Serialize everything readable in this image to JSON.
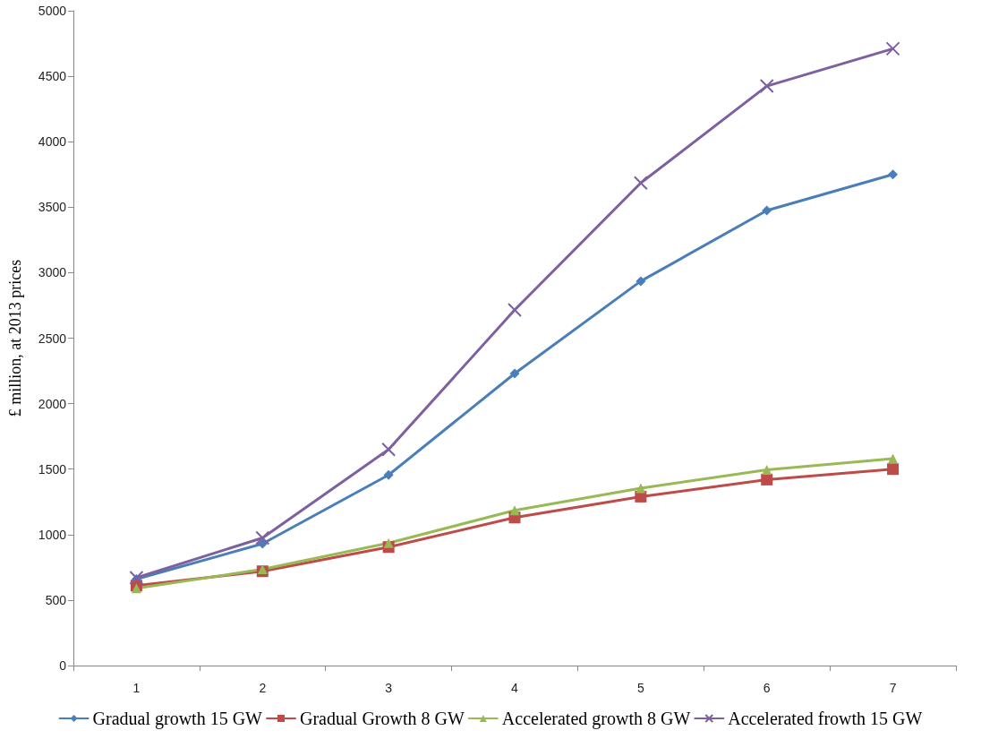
{
  "chart_data": {
    "type": "line",
    "ylabel": "£ million, at 2013 prices",
    "categories": [
      "1",
      "2",
      "3",
      "4",
      "5",
      "6",
      "7"
    ],
    "series": [
      {
        "name": "Gradual growth 15 GW",
        "color": "#4a7ebb",
        "marker": "diamond",
        "values": [
          660,
          930,
          1455,
          2230,
          2935,
          3475,
          3750
        ]
      },
      {
        "name": "Gradual Growth 8 GW",
        "color": "#be4b48",
        "marker": "square",
        "values": [
          610,
          720,
          905,
          1130,
          1290,
          1420,
          1500
        ]
      },
      {
        "name": "Accelerated growth 8 GW",
        "color": "#98b954",
        "marker": "triangle",
        "values": [
          590,
          735,
          935,
          1185,
          1355,
          1495,
          1580
        ]
      },
      {
        "name": "Accelerated frowth 15 GW",
        "color": "#7d60a0",
        "marker": "cross",
        "values": [
          670,
          975,
          1650,
          2715,
          3685,
          4425,
          4710
        ]
      }
    ],
    "ylim": [
      0,
      5000
    ],
    "yticks": [
      0,
      500,
      1000,
      1500,
      2000,
      2500,
      3000,
      3500,
      4000,
      4500,
      5000
    ],
    "grid": false,
    "legend": "bottom",
    "line_style": "solid"
  }
}
